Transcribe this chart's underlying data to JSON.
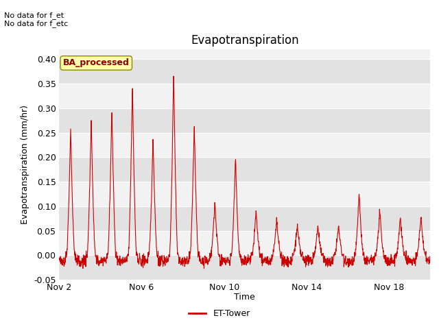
{
  "title": "Evapotranspiration",
  "ylabel": "Evapotranspiration (mm/hr)",
  "xlabel": "Time",
  "no_data_text": [
    "No data for f_et",
    "No data for f_etc"
  ],
  "ba_label": "BA_processed",
  "legend_label": "ET-Tower",
  "ylim": [
    -0.05,
    0.42
  ],
  "yticks": [
    -0.05,
    0.0,
    0.05,
    0.1,
    0.15,
    0.2,
    0.25,
    0.3,
    0.35,
    0.4
  ],
  "xtick_positions": [
    0,
    4,
    8,
    12,
    16
  ],
  "xtick_labels": [
    "Nov 2",
    "Nov 6",
    "Nov 10",
    "Nov 14",
    "Nov 18"
  ],
  "line_color": "#cc0000",
  "fig_bg": "#ffffff",
  "plot_bg_light": "#f2f2f2",
  "plot_bg_dark": "#e2e2e2",
  "grid_color": "#ffffff",
  "title_fontsize": 12,
  "axis_fontsize": 9,
  "tick_fontsize": 9,
  "ba_text_color": "#8b0000",
  "ba_box_color": "#ffffaa",
  "ba_edge_color": "#888800"
}
